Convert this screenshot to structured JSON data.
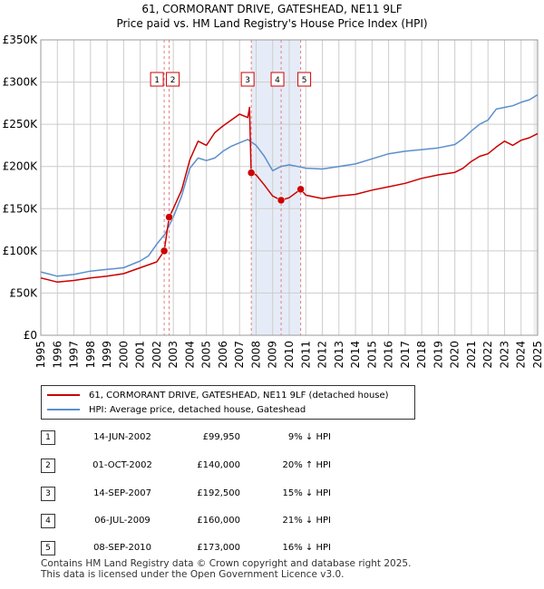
{
  "title_line1": "61, CORMORANT DRIVE, GATESHEAD, NE11 9LF",
  "title_line2": "Price paid vs. HM Land Registry's House Price Index (HPI)",
  "colors": {
    "property": "#cc0000",
    "hpi": "#5b8fcc",
    "shade": "#e6ecf7",
    "vline": "#e08080",
    "grid": "#cccccc"
  },
  "legend": {
    "property_label": "61, CORMORANT DRIVE, GATESHEAD, NE11 9LF (detached house)",
    "hpi_label": "HPI: Average price, detached house, Gateshead"
  },
  "chart_data": {
    "type": "line",
    "title": "Price paid vs. HM Land Registry's House Price Index (HPI)",
    "xlim": [
      1995,
      2025
    ],
    "ylim": [
      0,
      350000
    ],
    "y_ticks": [
      {
        "value": 0,
        "label": "£0"
      },
      {
        "value": 50000,
        "label": "£50K"
      },
      {
        "value": 100000,
        "label": "£100K"
      },
      {
        "value": 150000,
        "label": "£150K"
      },
      {
        "value": 200000,
        "label": "£200K"
      },
      {
        "value": 250000,
        "label": "£250K"
      },
      {
        "value": 300000,
        "label": "£300K"
      },
      {
        "value": 350000,
        "label": "£350K"
      }
    ],
    "x_ticks": [
      "1995",
      "1996",
      "1997",
      "1998",
      "1999",
      "2000",
      "2001",
      "2002",
      "2003",
      "2004",
      "2005",
      "2006",
      "2007",
      "2008",
      "2009",
      "2010",
      "2011",
      "2012",
      "2013",
      "2014",
      "2015",
      "2016",
      "2017",
      "2018",
      "2019",
      "2020",
      "2021",
      "2022",
      "2023",
      "2024",
      "2025"
    ],
    "shaded_range": [
      2007.71,
      2010.69
    ],
    "series": [
      {
        "name": "HPI: Average price, detached house, Gateshead",
        "x": [
          1995,
          1996,
          1997,
          1998,
          1999,
          2000,
          2001,
          2001.5,
          2002,
          2002.5,
          2003,
          2003.5,
          2004,
          2004.5,
          2005,
          2005.5,
          2006,
          2006.5,
          2007,
          2007.5,
          2008,
          2008.5,
          2009,
          2009.5,
          2010,
          2010.5,
          2011,
          2012,
          2013,
          2014,
          2015,
          2016,
          2017,
          2018,
          2019,
          2020,
          2020.5,
          2021,
          2021.5,
          2022,
          2022.5,
          2023,
          2023.5,
          2024,
          2024.5,
          2025
        ],
        "y": [
          75000,
          70000,
          72000,
          76000,
          78000,
          80000,
          88000,
          94000,
          108000,
          120000,
          140000,
          165000,
          198000,
          210000,
          207000,
          210000,
          218000,
          224000,
          228000,
          232000,
          225000,
          212000,
          195000,
          200000,
          202000,
          200000,
          198000,
          197000,
          200000,
          203000,
          209000,
          215000,
          218000,
          220000,
          222000,
          226000,
          233000,
          242000,
          250000,
          255000,
          268000,
          270000,
          272000,
          276000,
          279000,
          285000
        ]
      },
      {
        "name": "61, CORMORANT DRIVE, GATESHEAD, NE11 9LF (detached house)",
        "x": [
          1995,
          1996,
          1997,
          1998,
          1999,
          2000,
          2001,
          2002,
          2002.45,
          2002.75,
          2003,
          2003.5,
          2004,
          2004.5,
          2005,
          2005.5,
          2006,
          2006.5,
          2007,
          2007.5,
          2007.6,
          2007.7,
          2008,
          2008.5,
          2009,
          2009.51,
          2010,
          2010.69,
          2011,
          2012,
          2013,
          2014,
          2015,
          2016,
          2017,
          2018,
          2019,
          2020,
          2020.5,
          2021,
          2021.5,
          2022,
          2022.5,
          2023,
          2023.5,
          2024,
          2024.5,
          2025
        ],
        "y": [
          68000,
          63000,
          65000,
          68000,
          70000,
          73000,
          80000,
          87000,
          99950,
          140000,
          150000,
          172000,
          208000,
          230000,
          225000,
          240000,
          248000,
          255000,
          262000,
          258000,
          270000,
          192500,
          190000,
          178000,
          165000,
          160000,
          163000,
          173000,
          166000,
          162000,
          165000,
          167000,
          172000,
          176000,
          180000,
          186000,
          190000,
          193000,
          198000,
          206000,
          212000,
          215000,
          223000,
          230000,
          225000,
          231000,
          234000,
          239000
        ]
      }
    ],
    "transactions": [
      {
        "id": "1",
        "x": 2002.45,
        "y": 99950
      },
      {
        "id": "2",
        "x": 2002.75,
        "y": 140000
      },
      {
        "id": "3",
        "x": 2007.71,
        "y": 192500
      },
      {
        "id": "4",
        "x": 2009.51,
        "y": 160000
      },
      {
        "id": "5",
        "x": 2010.69,
        "y": 173000
      }
    ]
  },
  "transactions_table": [
    {
      "num": "1",
      "date": "14-JUN-2002",
      "price": "£99,950",
      "hpi": "9% ↓ HPI"
    },
    {
      "num": "2",
      "date": "01-OCT-2002",
      "price": "£140,000",
      "hpi": "20% ↑ HPI"
    },
    {
      "num": "3",
      "date": "14-SEP-2007",
      "price": "£192,500",
      "hpi": "15% ↓ HPI"
    },
    {
      "num": "4",
      "date": "06-JUL-2009",
      "price": "£160,000",
      "hpi": "21% ↓ HPI"
    },
    {
      "num": "5",
      "date": "08-SEP-2010",
      "price": "£173,000",
      "hpi": "16% ↓ HPI"
    }
  ],
  "footer": {
    "line1": "Contains HM Land Registry data © Crown copyright and database right 2025.",
    "line2": "This data is licensed under the Open Government Licence v3.0."
  }
}
